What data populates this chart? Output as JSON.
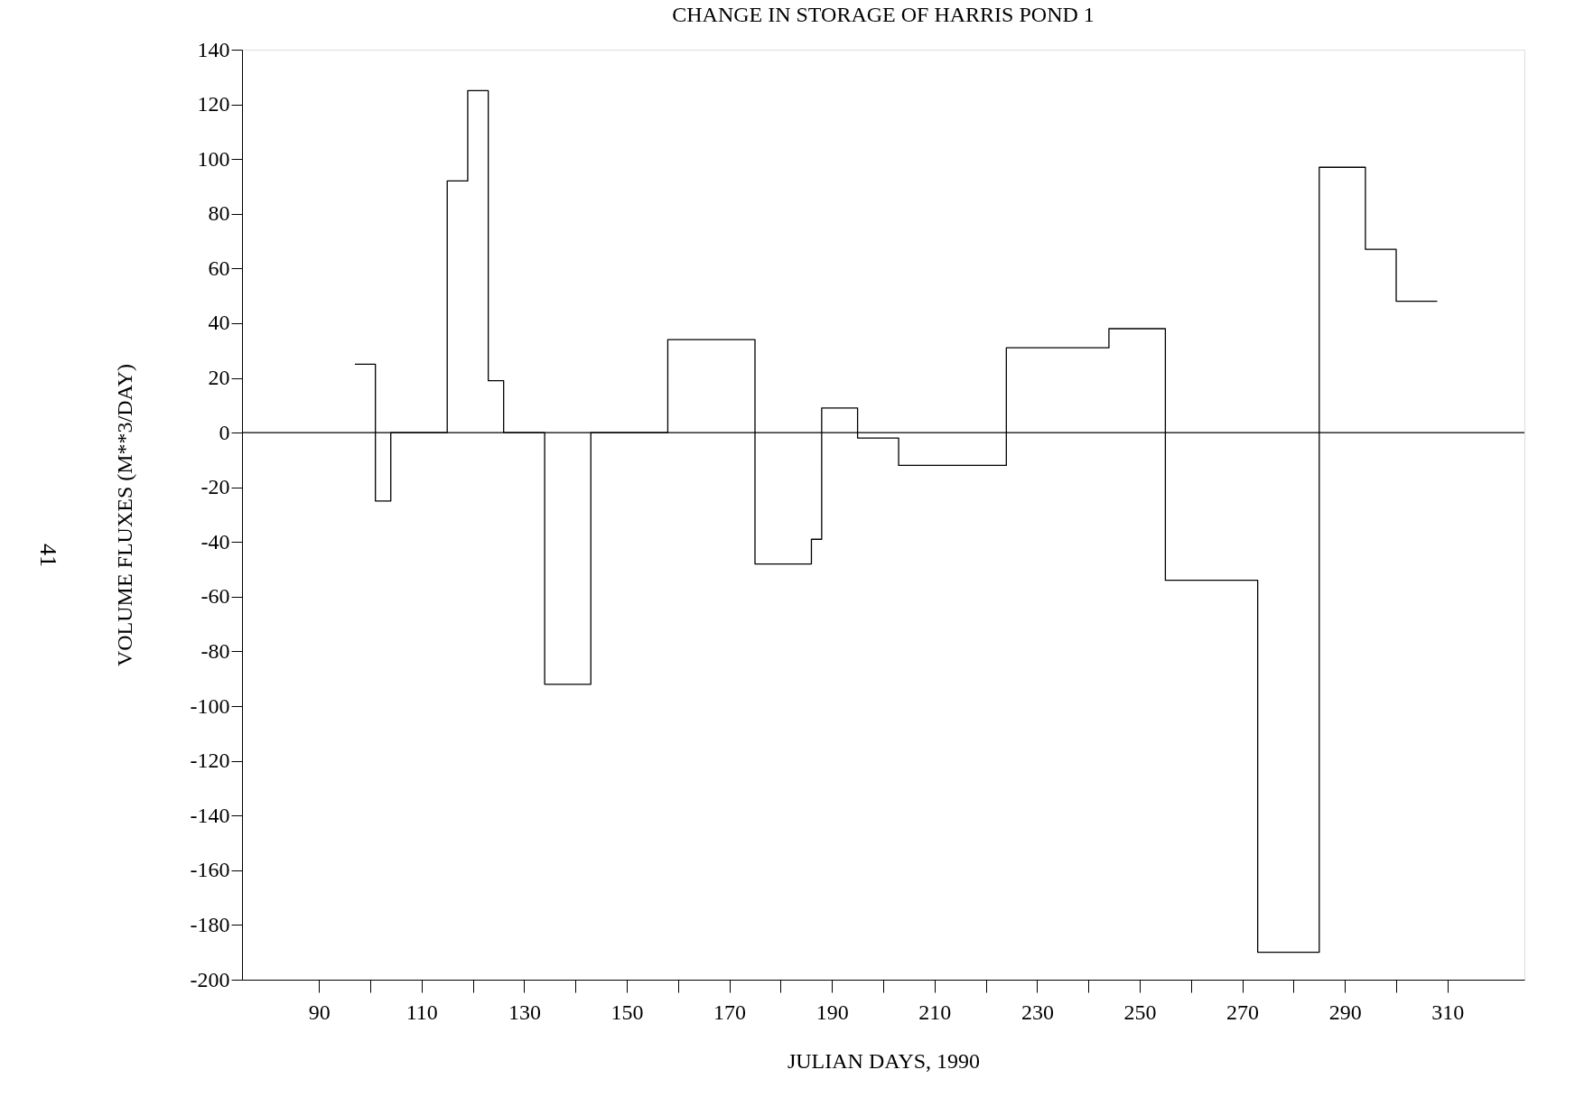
{
  "chart_data": {
    "type": "step",
    "title": "CHANGE IN STORAGE OF HARRIS POND 1",
    "xlabel": "JULIAN DAYS, 1990",
    "ylabel": "VOLUME FLUXES   (M**3/DAY)",
    "x": [
      97,
      101,
      104,
      115,
      119,
      123,
      126,
      134,
      143,
      158,
      175,
      186,
      188,
      195,
      203,
      224,
      244,
      255,
      273,
      285,
      294,
      300,
      308
    ],
    "series": [
      {
        "color": "#000000",
        "values": [
          25,
          -25,
          0,
          92,
          125,
          19,
          0,
          -92,
          0,
          34,
          -48,
          -39,
          9,
          -2,
          -12,
          31,
          38,
          -54,
          -190,
          97,
          67,
          48,
          48
        ]
      }
    ],
    "xlim": [
      75,
      325
    ],
    "ylim": [
      -200,
      140
    ],
    "xticks": [
      90,
      {
        "value": 100,
        "label": null
      },
      110,
      {
        "value": 120,
        "label": null
      },
      130,
      {
        "value": 140,
        "label": null
      },
      150,
      {
        "value": 160,
        "label": null
      },
      170,
      {
        "value": 180,
        "label": null
      },
      190,
      {
        "value": 200,
        "label": null
      },
      210,
      {
        "value": 220,
        "label": null
      },
      230,
      {
        "value": 240,
        "label": null
      },
      250,
      {
        "value": 260,
        "label": null
      },
      270,
      {
        "value": 280,
        "label": null
      },
      290,
      {
        "value": 300,
        "label": null
      },
      310
    ],
    "yticks": [
      -200,
      -180,
      -160,
      -140,
      -120,
      -100,
      -80,
      -60,
      -40,
      -20,
      0,
      20,
      40,
      60,
      80,
      100,
      120,
      140
    ],
    "ref_lines": [
      {
        "axis": "y",
        "value": 0,
        "color": "#000000"
      }
    ],
    "annotations": [
      "41"
    ],
    "grid": false
  }
}
